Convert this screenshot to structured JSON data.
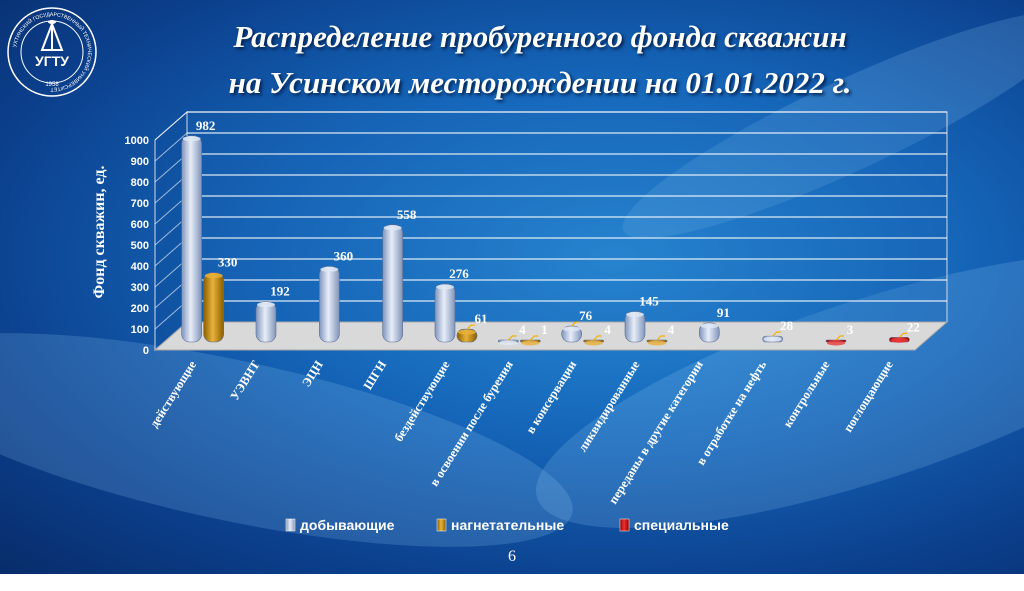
{
  "title": {
    "line1": "Распределение пробуренного фонда скважин",
    "line2": "на Усинском месторождении на 01.01.2022 г."
  },
  "logo": {
    "ring_text": "УХТИНСКИЙ ГОСУДАРСТВЕННЫЙ ТЕХНИЧЕСКИЙ УНИВЕРСИТЕТ",
    "year": "1958",
    "letters": "УГТУ"
  },
  "page_number": "6",
  "colors": {
    "blue_series": "#b9c9e6",
    "orange_series": "#c8900a",
    "red_series": "#c81010",
    "floor": "#d9d9d9"
  },
  "chart_data": {
    "type": "bar",
    "ylabel": "Фонд скважин, ед.",
    "ylim": [
      0,
      1000
    ],
    "yticks": [
      0,
      100,
      200,
      300,
      400,
      500,
      600,
      700,
      800,
      900,
      1000
    ],
    "grid": true,
    "legend_position": "bottom",
    "categories": [
      "действующие",
      "УЭВНТ",
      "ЭЦН",
      "ШГН",
      "бездействующие",
      "в освоении после бурения",
      "в консервации",
      "ликвидированные",
      "переданы в другие категории",
      "в отработке на нефть",
      "контрольные",
      "поглощающие"
    ],
    "series": [
      {
        "name": "добывающие",
        "color": "#b9c9e6",
        "values": [
          982,
          192,
          360,
          558,
          276,
          4,
          76,
          145,
          91,
          28,
          null,
          null
        ]
      },
      {
        "name": "нагнетательные",
        "color": "#c8900a",
        "values": [
          330,
          null,
          null,
          null,
          61,
          1,
          4,
          4,
          null,
          null,
          null,
          null
        ]
      },
      {
        "name": "специальные",
        "color": "#c81010",
        "values": [
          null,
          null,
          null,
          null,
          null,
          null,
          null,
          null,
          null,
          null,
          3,
          22
        ]
      }
    ]
  }
}
